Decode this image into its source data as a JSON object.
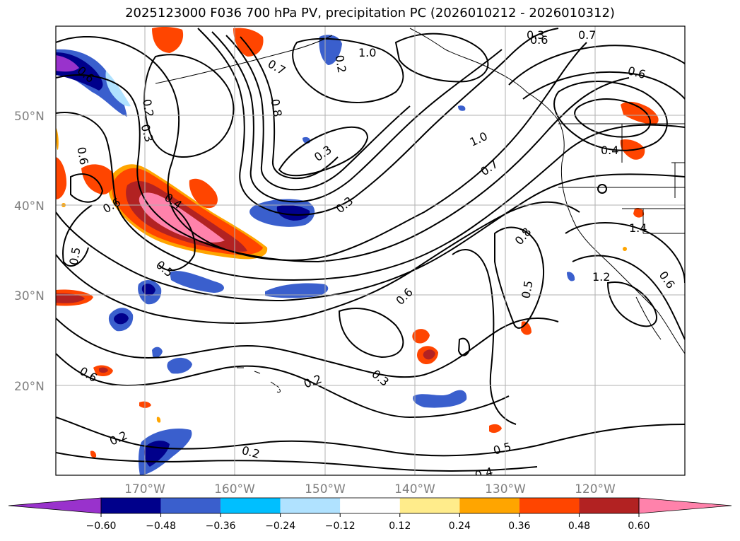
{
  "title": "2025123000 F036 700 hPa PV, precipitation PC (2026010212 - 2026010312)",
  "lat_labels": [
    "50°N",
    "40°N",
    "30°N",
    "20°N"
  ],
  "lon_labels": [
    "170°W",
    "160°W",
    "150°W",
    "140°W",
    "130°W",
    "120°W"
  ],
  "contour_labels": [
    "0.2",
    "0.3",
    "0.4",
    "0.5",
    "0.6",
    "0.7",
    "0.8",
    "1.0",
    "1.2",
    "1.4",
    "0.6",
    "0.4",
    "0.5",
    "0.6",
    "0.6",
    "0.3",
    "0.2",
    "0.3",
    "0.3",
    "0.4",
    "0.5",
    "0.7",
    "0.8",
    "1.0",
    "0.6",
    "0.7",
    "0.5",
    "0.6",
    "0.6",
    "0.2",
    "0.2",
    "0.2",
    "0.3",
    "0.6"
  ],
  "colorbar": {
    "ticks": [
      "−0.60",
      "−0.48",
      "−0.36",
      "−0.24",
      "−0.12",
      "0.12",
      "0.24",
      "0.36",
      "0.48",
      "0.60"
    ],
    "colors": [
      "#9932cc",
      "#00008b",
      "#3a5fcd",
      "#00bfff",
      "#b0e2ff",
      "#ffffff",
      "#ffec8b",
      "#ffa500",
      "#ff4500",
      "#b22222",
      "#ff82ab",
      "#ff82ab"
    ]
  },
  "palette": {
    "purple": "#9932cc",
    "navy": "#00008b",
    "blue": "#3a5fcd",
    "sky": "#00bfff",
    "light": "#b0e2ff",
    "yellow": "#ffec8b",
    "orange": "#ffa500",
    "red_orange": "#ff4500",
    "firebrick": "#b22222",
    "pink": "#ff82ab"
  }
}
